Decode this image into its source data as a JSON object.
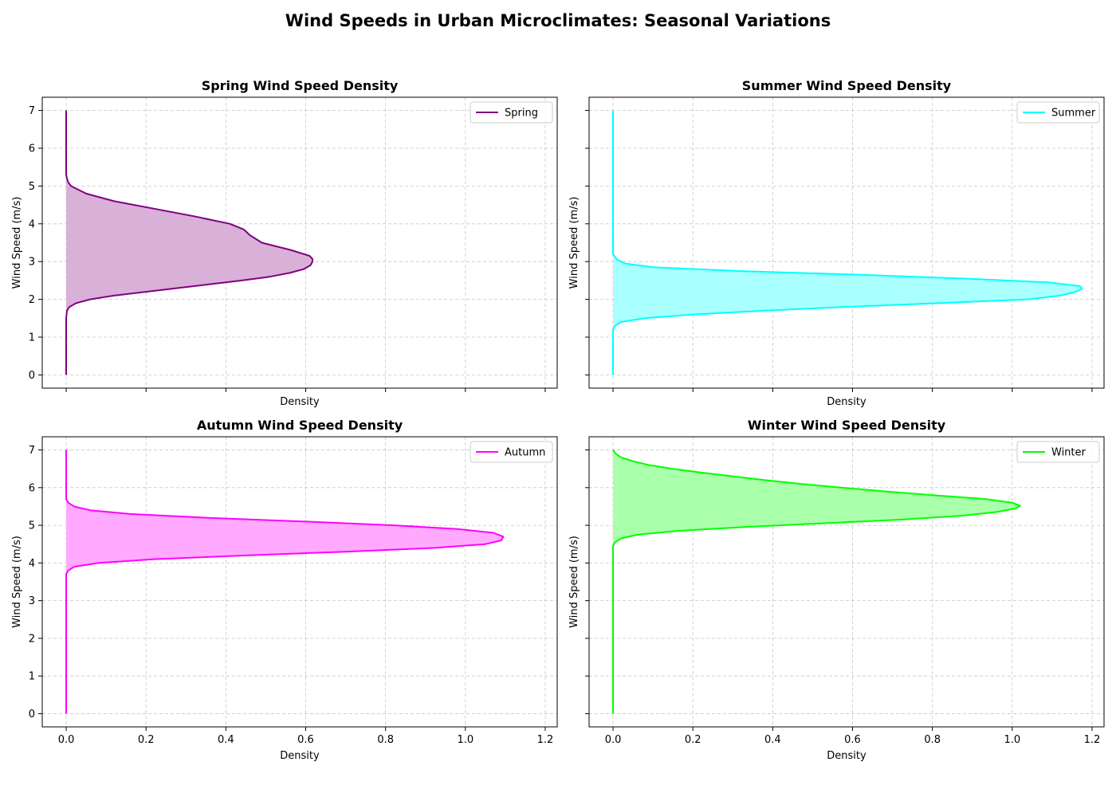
{
  "figure": {
    "title": "Wind Speeds in Urban Microclimates: Seasonal Variations"
  },
  "chart_data": [
    {
      "type": "area",
      "orientation": "horizontal-density",
      "title": "Spring Wind Speed Density",
      "xlabel": "Density",
      "ylabel": "Wind Speed (m/s)",
      "xlim": [
        -0.06,
        1.23
      ],
      "ylim": [
        -0.35,
        7.35
      ],
      "xticks": [
        0.0,
        0.2,
        0.4,
        0.6,
        0.8,
        1.0,
        1.2
      ],
      "yticks": [
        0,
        1,
        2,
        3,
        4,
        5,
        6,
        7
      ],
      "show_xtick_labels": false,
      "show_ytick_labels": true,
      "grid": true,
      "legend": "top-right",
      "series": [
        {
          "name": "Spring",
          "color": "#800080",
          "fill": "#d8b0d8",
          "wind_speed": [
            0.0,
            1.5,
            1.7,
            1.8,
            1.9,
            2.0,
            2.1,
            2.2,
            2.3,
            2.4,
            2.5,
            2.6,
            2.7,
            2.8,
            2.9,
            3.0,
            3.07,
            3.15,
            3.3,
            3.5,
            3.7,
            3.85,
            4.0,
            4.2,
            4.4,
            4.6,
            4.8,
            5.0,
            5.1,
            5.2,
            5.3,
            7.0
          ],
          "density": [
            0.0,
            0.0,
            0.002,
            0.008,
            0.025,
            0.06,
            0.12,
            0.2,
            0.28,
            0.36,
            0.44,
            0.51,
            0.56,
            0.595,
            0.612,
            0.617,
            0.617,
            0.61,
            0.565,
            0.49,
            0.46,
            0.445,
            0.41,
            0.32,
            0.22,
            0.12,
            0.05,
            0.012,
            0.005,
            0.002,
            0.0,
            0.0
          ]
        }
      ]
    },
    {
      "type": "area",
      "orientation": "horizontal-density",
      "title": "Summer Wind Speed Density",
      "xlabel": "Density",
      "ylabel": "Wind Speed (m/s)",
      "xlim": [
        -0.06,
        1.23
      ],
      "ylim": [
        -0.35,
        7.35
      ],
      "xticks": [
        0.0,
        0.2,
        0.4,
        0.6,
        0.8,
        1.0,
        1.2
      ],
      "yticks": [
        0,
        1,
        2,
        3,
        4,
        5,
        6,
        7
      ],
      "show_xtick_labels": false,
      "show_ytick_labels": false,
      "grid": true,
      "legend": "top-right",
      "series": [
        {
          "name": "Summer",
          "color": "#00ffff",
          "fill": "#aaffff",
          "wind_speed": [
            0.0,
            1.2,
            1.3,
            1.4,
            1.5,
            1.6,
            1.7,
            1.8,
            1.9,
            2.0,
            2.1,
            2.2,
            2.28,
            2.35,
            2.45,
            2.55,
            2.65,
            2.75,
            2.85,
            2.95,
            3.05,
            3.2,
            7.0
          ],
          "density": [
            0.0,
            0.0,
            0.005,
            0.02,
            0.08,
            0.2,
            0.38,
            0.58,
            0.82,
            1.04,
            1.12,
            1.16,
            1.175,
            1.17,
            1.09,
            0.88,
            0.62,
            0.32,
            0.1,
            0.03,
            0.01,
            0.0,
            0.0
          ]
        }
      ]
    },
    {
      "type": "area",
      "orientation": "horizontal-density",
      "title": "Autumn Wind Speed Density",
      "xlabel": "Density",
      "ylabel": "Wind Speed (m/s)",
      "xlim": [
        -0.06,
        1.23
      ],
      "ylim": [
        -0.35,
        7.35
      ],
      "xticks": [
        0.0,
        0.2,
        0.4,
        0.6,
        0.8,
        1.0,
        1.2
      ],
      "yticks": [
        0,
        1,
        2,
        3,
        4,
        5,
        6,
        7
      ],
      "show_xtick_labels": true,
      "show_ytick_labels": true,
      "grid": true,
      "legend": "top-right",
      "series": [
        {
          "name": "Autumn",
          "color": "#ff00ff",
          "fill": "#ffaaff",
          "wind_speed": [
            0.0,
            3.7,
            3.8,
            3.9,
            4.0,
            4.1,
            4.2,
            4.3,
            4.4,
            4.5,
            4.6,
            4.7,
            4.8,
            4.9,
            5.0,
            5.1,
            5.2,
            5.3,
            5.4,
            5.5,
            5.6,
            5.7,
            7.0
          ],
          "density": [
            0.0,
            0.0,
            0.005,
            0.02,
            0.08,
            0.22,
            0.45,
            0.7,
            0.92,
            1.05,
            1.09,
            1.095,
            1.07,
            0.98,
            0.82,
            0.6,
            0.35,
            0.16,
            0.06,
            0.02,
            0.005,
            0.0,
            0.0
          ]
        }
      ]
    },
    {
      "type": "area",
      "orientation": "horizontal-density",
      "title": "Winter Wind Speed Density",
      "xlabel": "Density",
      "ylabel": "Wind Speed (m/s)",
      "xlim": [
        -0.06,
        1.23
      ],
      "ylim": [
        -0.35,
        7.35
      ],
      "xticks": [
        0.0,
        0.2,
        0.4,
        0.6,
        0.8,
        1.0,
        1.2
      ],
      "yticks": [
        0,
        1,
        2,
        3,
        4,
        5,
        6,
        7
      ],
      "show_xtick_labels": true,
      "show_ytick_labels": false,
      "grid": true,
      "legend": "top-right",
      "series": [
        {
          "name": "Winter",
          "color": "#00ff00",
          "fill": "#aaffaa",
          "wind_speed": [
            0.0,
            4.45,
            4.55,
            4.65,
            4.75,
            4.85,
            4.95,
            5.05,
            5.15,
            5.25,
            5.35,
            5.45,
            5.52,
            5.6,
            5.7,
            5.8,
            5.9,
            6.0,
            6.1,
            6.2,
            6.3,
            6.4,
            6.5,
            6.6,
            6.7,
            6.8,
            6.9,
            7.0
          ],
          "density": [
            0.0,
            0.0,
            0.005,
            0.02,
            0.06,
            0.16,
            0.32,
            0.52,
            0.72,
            0.87,
            0.96,
            1.01,
            1.02,
            1.0,
            0.93,
            0.8,
            0.68,
            0.57,
            0.47,
            0.38,
            0.3,
            0.22,
            0.15,
            0.09,
            0.05,
            0.02,
            0.007,
            0.0
          ]
        }
      ]
    }
  ]
}
